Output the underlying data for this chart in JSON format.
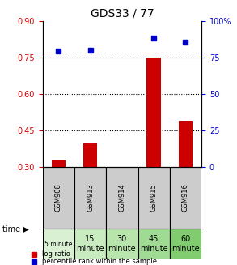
{
  "title": "GDS33 / 77",
  "categories": [
    "GSM908",
    "GSM913",
    "GSM914",
    "GSM915",
    "GSM916"
  ],
  "time_labels": [
    "5 minute",
    "15\nminute",
    "30\nminute",
    "45\nminute",
    "60\nminute"
  ],
  "time_colors": [
    "#d9f0d3",
    "#c8ebc0",
    "#b8e5ac",
    "#a0db94",
    "#80cc6e"
  ],
  "log_ratio": [
    0.325,
    0.395,
    0.3,
    0.75,
    0.49
  ],
  "percentile_rank": [
    0.795,
    0.8,
    null,
    0.885,
    0.855
  ],
  "bar_color": "#cc0000",
  "dot_color": "#0000cc",
  "ylim_left": [
    0.3,
    0.9
  ],
  "ylim_right": [
    0,
    100
  ],
  "yticks_left": [
    0.3,
    0.45,
    0.6,
    0.75,
    0.9
  ],
  "yticks_right": [
    0,
    25,
    50,
    75,
    100
  ],
  "dotted_lines": [
    0.75,
    0.6,
    0.45
  ],
  "left_axis_color": "#cc0000",
  "right_axis_color": "#0000cc",
  "grid_color": "#000000",
  "header_bg": "#cccccc",
  "bg_color": "#ffffff"
}
